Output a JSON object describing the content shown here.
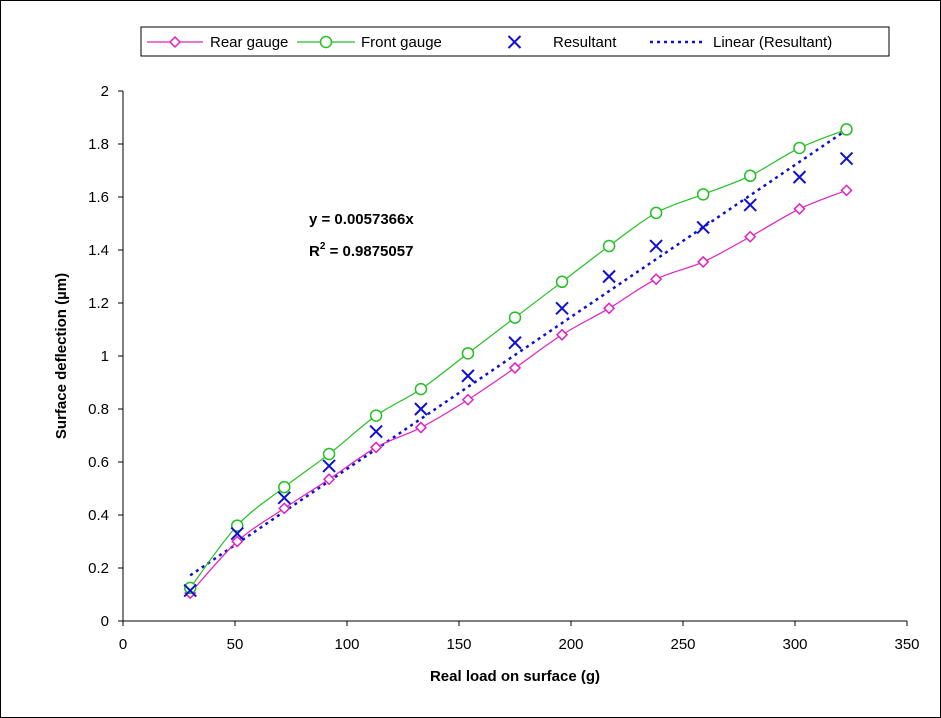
{
  "chart_data": {
    "type": "line",
    "xlabel": "Real load on surface (g)",
    "ylabel": "Surface deflection (µm)",
    "xlim": [
      0,
      350
    ],
    "ylim": [
      0,
      2
    ],
    "x_ticks": [
      0,
      50,
      100,
      150,
      200,
      250,
      300,
      350
    ],
    "y_ticks": [
      0,
      0.2,
      0.4,
      0.6,
      0.8,
      1,
      1.2,
      1.4,
      1.6,
      1.8,
      2
    ],
    "x_tick_labels": [
      "0",
      "50",
      "100",
      "150",
      "200",
      "250",
      "300",
      "350"
    ],
    "y_tick_labels": [
      "0",
      "0.2",
      "0.4",
      "0.6",
      "0.8",
      "1",
      "1.2",
      "1.4",
      "1.6",
      "1.8",
      "2"
    ],
    "grid": false,
    "legend_position": "top",
    "x": [
      30,
      51,
      72,
      92,
      113,
      133,
      154,
      175,
      196,
      217,
      238,
      259,
      280,
      302,
      323
    ],
    "series": [
      {
        "name": "Rear gauge",
        "style": "line-diamond",
        "color": "#e020c0",
        "values": [
          0.105,
          0.3,
          0.425,
          0.535,
          0.655,
          0.73,
          0.835,
          0.955,
          1.08,
          1.18,
          1.29,
          1.355,
          1.45,
          1.555,
          1.625
        ]
      },
      {
        "name": "Front gauge",
        "style": "line-circle",
        "color": "#22c022",
        "values": [
          0.125,
          0.36,
          0.505,
          0.63,
          0.775,
          0.875,
          1.01,
          1.145,
          1.28,
          1.415,
          1.54,
          1.61,
          1.68,
          1.785,
          1.855
        ]
      },
      {
        "name": "Resultant",
        "style": "marker-x",
        "color": "#1010d0",
        "values": [
          0.115,
          0.33,
          0.465,
          0.585,
          0.715,
          0.8,
          0.925,
          1.05,
          1.18,
          1.3,
          1.415,
          1.485,
          1.57,
          1.675,
          1.745
        ]
      },
      {
        "name": "Linear (Resultant)",
        "style": "dotted-trend",
        "color": "#1010d0",
        "slope": 0.0057366
      }
    ],
    "annotations": {
      "equation": "y = 0.0057366x",
      "r_squared_prefix": "R",
      "r_squared_superscript": "2",
      "r_squared_value": " = 0.9875057"
    }
  }
}
